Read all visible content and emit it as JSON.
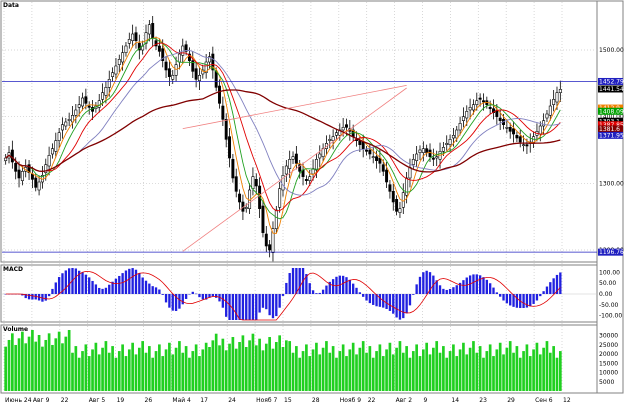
{
  "chart_data": [
    {
      "type": "candlestick",
      "title": "Data",
      "yticks": [
        1200,
        1300,
        1400,
        1500
      ],
      "ylim": [
        1185,
        1560
      ],
      "x_labels": [
        "Июнь 24",
        "Авг 9",
        "22",
        "Авг 5",
        "19",
        "26",
        "Май 4",
        "17",
        "24",
        "Нояб 7",
        "15",
        "28",
        "Нояб 9",
        "22",
        "Авг 2",
        "9",
        "14",
        "23",
        "29",
        "Сен 6",
        "12"
      ],
      "price_labels": [
        {
          "value": 1452.79,
          "text": "1452.79",
          "color": "#2020c0"
        },
        {
          "value": 1441.54,
          "text": "1441.54",
          "color": "#000000"
        },
        {
          "value": 1412.9,
          "text": "1412.9",
          "color": "#f08000"
        },
        {
          "value": 1408.09,
          "text": "1408.09",
          "color": "#00a000"
        },
        {
          "value": 1393.1,
          "text": "1393.1",
          "color": "#000000"
        },
        {
          "value": 1387.85,
          "text": "1387.85",
          "color": "#e00000"
        },
        {
          "value": 1381.6,
          "text": "1381.6",
          "color": "#800000"
        },
        {
          "value": 1371.95,
          "text": "1371.95",
          "color": "#2020c0"
        },
        {
          "value": 1196.76,
          "text": "1196.76",
          "color": "#2020c0"
        }
      ],
      "horizontal_lines": [
        1452.79,
        1196.76
      ],
      "trendlines": [
        {
          "from": [
            53,
            1198
          ],
          "to": [
            120,
            1443
          ]
        },
        {
          "from": [
            53,
            1382
          ],
          "to": [
            120,
            1447
          ]
        }
      ],
      "close": [
        1338,
        1346,
        1332,
        1318,
        1308,
        1318,
        1324,
        1316,
        1306,
        1294,
        1302,
        1312,
        1328,
        1342,
        1352,
        1364,
        1376,
        1388,
        1392,
        1396,
        1402,
        1410,
        1418,
        1428,
        1420,
        1414,
        1408,
        1416,
        1424,
        1436,
        1444,
        1456,
        1466,
        1476,
        1486,
        1496,
        1506,
        1516,
        1524,
        1514,
        1500,
        1506,
        1526,
        1538,
        1518,
        1506,
        1498,
        1484,
        1470,
        1460,
        1462,
        1478,
        1494,
        1506,
        1498,
        1484,
        1468,
        1456,
        1462,
        1470,
        1482,
        1490,
        1470,
        1444,
        1420,
        1396,
        1366,
        1338,
        1308,
        1288,
        1272,
        1258,
        1264,
        1290,
        1310,
        1296,
        1262,
        1226,
        1206,
        1200,
        1232,
        1260,
        1292,
        1312,
        1326,
        1336,
        1340,
        1330,
        1318,
        1310,
        1304,
        1310,
        1322,
        1336,
        1344,
        1352,
        1360,
        1366,
        1370,
        1376,
        1380,
        1384,
        1384,
        1378,
        1370,
        1364,
        1358,
        1352,
        1348,
        1344,
        1340,
        1334,
        1330,
        1318,
        1302,
        1288,
        1272,
        1258,
        1262,
        1286,
        1308,
        1324,
        1336,
        1344,
        1350,
        1352,
        1346,
        1340,
        1336,
        1340,
        1348,
        1354,
        1360,
        1366,
        1372,
        1380,
        1390,
        1400,
        1408,
        1414,
        1418,
        1424,
        1426,
        1422,
        1418,
        1412,
        1406,
        1400,
        1394,
        1388,
        1384,
        1378,
        1374,
        1368,
        1362,
        1358,
        1356,
        1362,
        1370,
        1378,
        1386,
        1394,
        1404,
        1416,
        1426,
        1436,
        1441
      ]
    },
    {
      "type": "bar",
      "title": "MACD",
      "yticks": [
        100,
        50,
        0,
        -50,
        -100
      ],
      "ylim": [
        -120,
        120
      ]
    },
    {
      "type": "bar",
      "title": "Volume",
      "yticks": [
        30000,
        25000,
        20000,
        15000,
        10000,
        5000
      ],
      "ylim": [
        0,
        33000
      ]
    }
  ]
}
